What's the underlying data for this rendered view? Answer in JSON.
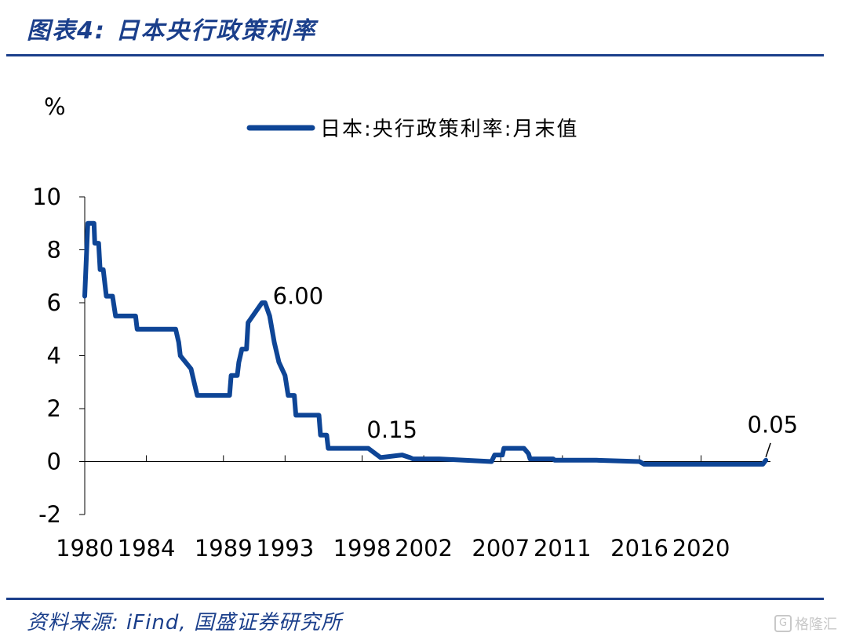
{
  "header": {
    "title": "图表4: 日本央行政策利率"
  },
  "footer": {
    "source": "资料来源: iFind, 国盛证券研究所",
    "watermark": "格隆汇",
    "watermark_logo": "G"
  },
  "colors": {
    "accent": "#1b3f8b",
    "series": "#0e4596"
  },
  "chart_data": {
    "type": "line",
    "ylabel": "%",
    "ylim": [
      -2,
      10
    ],
    "yticks": [
      -2,
      0,
      2,
      4,
      6,
      8,
      10
    ],
    "xlim": [
      1980,
      2024.5
    ],
    "xticks": [
      "1980",
      "1984",
      "1989",
      "1993",
      "1998",
      "2002",
      "2007",
      "2011",
      "2016",
      "2020"
    ],
    "legend": {
      "placement": "top-center"
    },
    "grid": false,
    "series": [
      {
        "name": "日本:央行政策利率:月末值",
        "x": [
          1980.0,
          1980.2,
          1980.6,
          1980.65,
          1980.9,
          1981.0,
          1981.2,
          1981.4,
          1981.8,
          1982.0,
          1983.3,
          1983.4,
          1984.2,
          1985.9,
          1986.1,
          1986.2,
          1986.9,
          1987.1,
          1987.3,
          1989.4,
          1989.5,
          1989.9,
          1990.0,
          1990.2,
          1990.5,
          1990.6,
          1991.5,
          1991.7,
          1992.0,
          1992.3,
          1992.6,
          1993.0,
          1993.2,
          1993.6,
          1993.7,
          1995.2,
          1995.3,
          1995.7,
          1995.8,
          1998.4,
          1999.2,
          2000.6,
          2001.1,
          2001.3,
          2003.0,
          2006.4,
          2006.6,
          2007.1,
          2007.2,
          2008.5,
          2008.8,
          2008.9,
          2010.4,
          2010.5,
          2013.2,
          2016.0,
          2016.3,
          2019.0,
          2024.0,
          2024.2
        ],
        "y": [
          6.25,
          9.0,
          9.0,
          8.25,
          8.25,
          7.25,
          7.25,
          6.25,
          6.25,
          5.5,
          5.5,
          5.0,
          5.0,
          5.0,
          4.5,
          4.0,
          3.5,
          3.0,
          2.5,
          2.5,
          3.25,
          3.25,
          3.75,
          4.25,
          4.25,
          5.25,
          6.0,
          6.0,
          5.5,
          4.5,
          3.75,
          3.25,
          2.5,
          2.5,
          1.75,
          1.75,
          1.0,
          1.0,
          0.5,
          0.5,
          0.15,
          0.25,
          0.15,
          0.1,
          0.1,
          0.0,
          0.25,
          0.25,
          0.5,
          0.5,
          0.3,
          0.1,
          0.1,
          0.05,
          0.05,
          0.0,
          -0.1,
          -0.1,
          -0.1,
          0.05
        ]
      }
    ],
    "annotations": [
      {
        "text": "6.00",
        "x": 1992.2,
        "y": 5.95
      },
      {
        "text": "0.15",
        "x": 1998.3,
        "y": 0.9
      },
      {
        "text": "0.05",
        "x": 2023.0,
        "y": 1.1
      }
    ]
  }
}
